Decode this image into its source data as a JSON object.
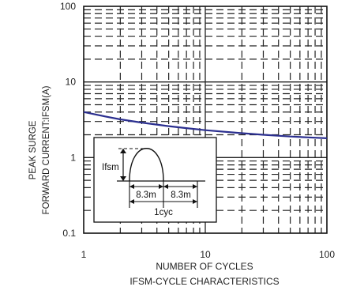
{
  "chart_data": {
    "type": "line",
    "title": "IFSM-CYCLE CHARACTERISTICS",
    "xlabel": "NUMBER OF CYCLES",
    "ylabel_lines": [
      "PEAK SURGE",
      "FORWARD CURRENT:IFSM(A)"
    ],
    "x_scale": "log",
    "y_scale": "log",
    "xlim": [
      1,
      100
    ],
    "ylim": [
      0.1,
      100
    ],
    "x_ticks": [
      1,
      10,
      100
    ],
    "x_tick_labels": [
      "1",
      "10",
      "100"
    ],
    "y_ticks": [
      0.1,
      1,
      10,
      100
    ],
    "y_tick_labels": [
      "0.1",
      "1",
      "10",
      "100"
    ],
    "grid": "dashed log grid",
    "series": [
      {
        "color": "#2b2f8f",
        "x": [
          1,
          1.5,
          2,
          3,
          5,
          7,
          10,
          20,
          30,
          50,
          70,
          100
        ],
        "y": [
          4.0,
          3.5,
          3.2,
          2.9,
          2.6,
          2.45,
          2.3,
          2.1,
          2.0,
          1.9,
          1.85,
          1.8
        ]
      }
    ],
    "inset": {
      "label_ifsm": "Ifsm",
      "label_half1": "8.3m",
      "label_half2": "8.3m",
      "label_cycle": "1cyc"
    }
  }
}
